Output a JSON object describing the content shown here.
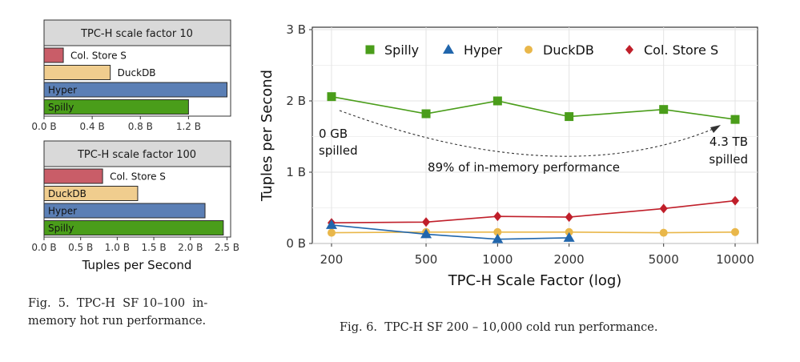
{
  "chart_data": [
    {
      "type": "bar",
      "orientation": "horizontal",
      "facet_title": "TPC-H scale factor 10",
      "categories": [
        "Col. Store S",
        "DuckDB",
        "Hyper",
        "Spilly"
      ],
      "values": [
        0.16,
        0.55,
        1.52,
        1.2
      ],
      "value_labels": [
        "Col. Store S",
        "DuckDB",
        "Hyper",
        "Spilly"
      ],
      "colors": [
        "#c95d68",
        "#f0cd8e",
        "#5b7fb5",
        "#4a9d1a"
      ],
      "xlim": [
        0,
        1.55
      ],
      "xticks": [
        0,
        0.4,
        0.8,
        1.2
      ],
      "xtick_labels": [
        "0.0 B",
        "0.4 B",
        "0.8 B",
        "1.2 B"
      ],
      "xlabel": ""
    },
    {
      "type": "bar",
      "orientation": "horizontal",
      "facet_title": "TPC-H scale factor 100",
      "categories": [
        "Col. Store S",
        "DuckDB",
        "Hyper",
        "Spilly"
      ],
      "values": [
        0.8,
        1.28,
        2.2,
        2.45
      ],
      "value_labels": [
        "Col. Store S",
        "DuckDB",
        "Hyper",
        "Spilly"
      ],
      "colors": [
        "#c95d68",
        "#f0cd8e",
        "#5b7fb5",
        "#4a9d1a"
      ],
      "xlim": [
        0,
        2.55
      ],
      "xticks": [
        0,
        0.5,
        1.0,
        1.5,
        2.0,
        2.5
      ],
      "xtick_labels": [
        "0.0 B",
        "0.5 B",
        "1.0 B",
        "1.5 B",
        "2.0 B",
        "2.5 B"
      ],
      "xlabel": "Tuples per Second"
    },
    {
      "type": "line",
      "xscale": "log",
      "x": [
        200,
        500,
        1000,
        2000,
        5000,
        10000
      ],
      "xtick_labels": [
        "200",
        "500",
        "1000",
        "2000",
        "5000",
        "10000"
      ],
      "xlabel": "TPC-H Scale Factor (log)",
      "ylabel": "Tuples per Second",
      "ylim": [
        0,
        3
      ],
      "yticks": [
        0,
        1,
        2,
        3
      ],
      "ytick_labels": [
        "0 B",
        "1 B",
        "2 B",
        "3 B"
      ],
      "legend_position": "top",
      "series": [
        {
          "name": "Spilly",
          "x": [
            200,
            500,
            1000,
            2000,
            5000,
            10000
          ],
          "values": [
            2.06,
            1.82,
            2.0,
            1.78,
            1.88,
            1.74
          ],
          "color": "#4a9d1a",
          "marker": "square"
        },
        {
          "name": "Hyper",
          "x": [
            200,
            500,
            1000,
            2000
          ],
          "values": [
            0.26,
            0.13,
            0.06,
            0.08
          ],
          "color": "#2166ac",
          "marker": "triangle"
        },
        {
          "name": "DuckDB",
          "x": [
            200,
            500,
            1000,
            2000,
            5000,
            10000
          ],
          "values": [
            0.15,
            0.16,
            0.16,
            0.16,
            0.15,
            0.16
          ],
          "color": "#e9b74a",
          "marker": "circle"
        },
        {
          "name": "Col. Store S",
          "x": [
            200,
            500,
            1000,
            2000,
            5000,
            10000
          ],
          "values": [
            0.29,
            0.3,
            0.38,
            0.37,
            0.49,
            0.6
          ],
          "color": "#c01f2a",
          "marker": "diamond"
        }
      ],
      "annotations": {
        "left_line1": "0 GB",
        "left_line2": "spilled",
        "right_line1": "4.3 TB",
        "right_line2": "spilled",
        "middle": "89% of in-memory performance"
      }
    }
  ],
  "captions": {
    "fig5_line1": "Fig.  5.  TPC-H  SF 10–100  in-",
    "fig5_line2": "memory hot run performance.",
    "fig6": "Fig. 6.  TPC-H SF 200 – 10,000 cold run performance."
  }
}
